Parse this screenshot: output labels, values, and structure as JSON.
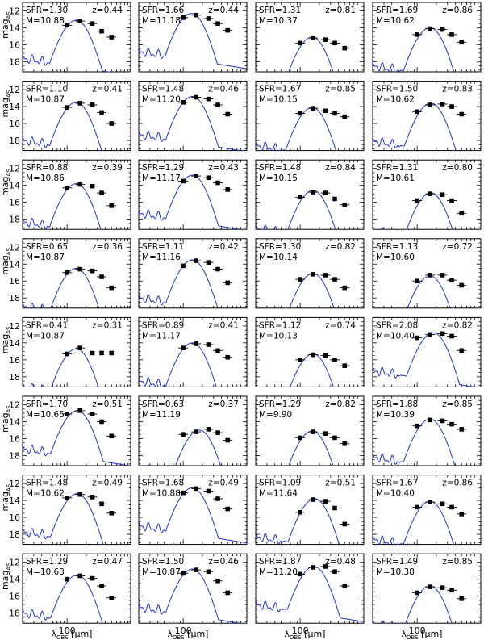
{
  "figure": {
    "ylabel_main": "mag",
    "ylabel_sub": "AS",
    "xlabel_main": "λ",
    "xlabel_sub": "OBS",
    "xlabel_unit": " [μm]",
    "y_ticks": [
      "12",
      "14",
      "16",
      "18"
    ],
    "x_tick": "100",
    "colors": {
      "model": "#2233cc",
      "data": "#000000",
      "axes": "#000000"
    }
  },
  "chart_data": {
    "type": "scatter",
    "layout": "8 rows x 4 columns of spectral energy distribution panels",
    "x_scale": "log",
    "x_unit": "μm",
    "xlim": [
      20,
      1000
    ],
    "ylim": [
      19.2,
      11.0
    ],
    "y_inverted": true,
    "band_wavelengths_um": [
      100,
      160,
      250,
      350,
      500
    ],
    "panels": [
      {
        "sfr": "SFR=1.30",
        "z": "z=0.44",
        "mass": "M=10.88",
        "peak_wl": 140,
        "peak_mag": 13.1,
        "points": [
          13.7,
          13.2,
          13.5,
          14.4,
          15.1
        ]
      },
      {
        "sfr": "SFR=1.66",
        "z": "z=0.44",
        "mass": "M=11.18",
        "peak_wl": 135,
        "peak_mag": 12.3,
        "points": [
          12.8,
          12.5,
          12.9,
          13.5,
          14.3
        ]
      },
      {
        "sfr": "SFR=1.31",
        "z": "z=0.81",
        "mass": "M=10.37",
        "peak_wl": 155,
        "peak_mag": 15.1,
        "points": [
          15.8,
          15.2,
          15.4,
          15.8,
          16.4
        ]
      },
      {
        "sfr": "SFR=1.69",
        "z": "z=0.86",
        "mass": "M=10.62",
        "peak_wl": 160,
        "peak_mag": 14.0,
        "points": [
          14.8,
          14.1,
          14.2,
          14.8,
          15.7
        ]
      },
      {
        "sfr": "SFR=1.10",
        "z": "z=0.41",
        "mass": "M=10.87",
        "peak_wl": 140,
        "peak_mag": 13.5,
        "points": [
          14.1,
          13.6,
          13.8,
          14.7,
          16.0
        ]
      },
      {
        "sfr": "SFR=1.48",
        "z": "z=0.46",
        "mass": "M=11.20",
        "peak_wl": 140,
        "peak_mag": 12.8,
        "points": [
          13.5,
          12.9,
          13.1,
          13.8,
          14.9
        ]
      },
      {
        "sfr": "SFR=1.67",
        "z": "z=0.85",
        "mass": "M=10.15",
        "peak_wl": 155,
        "peak_mag": 14.1,
        "points": [
          14.8,
          14.2,
          14.5,
          14.8,
          15.2
        ]
      },
      {
        "sfr": "SFR=1.50",
        "z": "z=0.83",
        "mass": "M=10.62",
        "peak_wl": 165,
        "peak_mag": 13.6,
        "points": [
          14.6,
          13.8,
          13.7,
          14.0,
          14.9
        ]
      },
      {
        "sfr": "SFR=0.88",
        "z": "z=0.39",
        "mass": "M=10.86",
        "peak_wl": 140,
        "peak_mag": 13.8,
        "points": [
          14.3,
          13.9,
          14.1,
          14.9,
          16.4
        ]
      },
      {
        "sfr": "SFR=1.29",
        "z": "z=0.43",
        "mass": "M=11.17",
        "peak_wl": 140,
        "peak_mag": 12.8,
        "points": [
          13.5,
          12.9,
          13.1,
          13.7,
          14.5
        ]
      },
      {
        "sfr": "SFR=1.48",
        "z": "z=0.84",
        "mass": "M=10.15",
        "peak_wl": 160,
        "peak_mag": 14.6,
        "points": [
          15.4,
          14.8,
          14.9,
          15.6,
          16.3
        ]
      },
      {
        "sfr": "SFR=1.31",
        "z": "z=0.80",
        "mass": "M=10.61",
        "peak_wl": 165,
        "peak_mag": 14.9,
        "points": [
          15.8,
          15.0,
          15.1,
          15.8,
          17.3
        ]
      },
      {
        "sfr": "SFR=0.65",
        "z": "z=0.36",
        "mass": "M=10.87",
        "peak_wl": 140,
        "peak_mag": 14.5,
        "points": [
          15.0,
          14.6,
          14.8,
          15.5,
          16.8
        ]
      },
      {
        "sfr": "SFR=1.11",
        "z": "z=0.42",
        "mass": "M=11.16",
        "peak_wl": 140,
        "peak_mag": 13.5,
        "points": [
          14.2,
          13.6,
          13.8,
          14.6,
          16.2
        ]
      },
      {
        "sfr": "SFR=1.30",
        "z": "z=0.82",
        "mass": "M=10.14",
        "peak_wl": 160,
        "peak_mag": 15.1,
        "points": [
          15.8,
          15.2,
          15.3,
          15.8,
          16.8
        ]
      },
      {
        "sfr": "SFR=1.13",
        "z": "z=0.72",
        "mass": "M=10.60",
        "peak_wl": 160,
        "peak_mag": 15.4,
        "points": [
          16.0,
          15.3,
          15.3,
          15.9,
          16.5
        ]
      },
      {
        "sfr": "SFR=0.41",
        "z": "z=0.31",
        "mass": "M=10.87",
        "peak_wl": 140,
        "peak_mag": 14.7,
        "points": [
          15.3,
          14.6,
          15.2,
          15.2,
          15.2
        ]
      },
      {
        "sfr": "SFR=0.89",
        "z": "z=0.41",
        "mass": "M=11.17",
        "peak_wl": 140,
        "peak_mag": 14.0,
        "points": [
          14.6,
          14.1,
          14.2,
          14.9,
          15.7
        ]
      },
      {
        "sfr": "SFR=1.12",
        "z": "z=0.74",
        "mass": "M=10.13",
        "peak_wl": 160,
        "peak_mag": 15.3,
        "points": [
          16.0,
          15.4,
          15.5,
          16.0,
          16.7
        ]
      },
      {
        "sfr": "SFR=2.08",
        "z": "z=0.82",
        "mass": "M=10.40",
        "peak_wl": 180,
        "peak_mag": 12.8,
        "points": [
          13.4,
          13.0,
          12.9,
          13.2,
          14.9
        ]
      },
      {
        "sfr": "SFR=1.70",
        "z": "z=0.51",
        "mass": "M=10.65",
        "peak_wl": 145,
        "peak_mag": 12.7,
        "points": [
          13.1,
          12.7,
          13.1,
          14.0,
          15.7
        ]
      },
      {
        "sfr": "SFR=0.63",
        "z": "z=0.37",
        "mass": "M=11.19",
        "peak_wl": 180,
        "peak_mag": 15.0,
        "points": [
          15.5,
          15.2,
          14.9,
          15.3,
          16.2
        ]
      },
      {
        "sfr": "SFR=1.29",
        "z": "z=0.82",
        "mass": "M=9.90",
        "peak_wl": 155,
        "peak_mag": 15.1,
        "points": [
          15.9,
          15.2,
          15.4,
          15.9,
          16.6
        ]
      },
      {
        "sfr": "SFR=1.88",
        "z": "z=0.85",
        "mass": "M=10.39",
        "peak_wl": 160,
        "peak_mag": 13.7,
        "points": [
          14.5,
          13.8,
          13.9,
          14.3,
          14.9
        ]
      },
      {
        "sfr": "SFR=1.48",
        "z": "z=0.49",
        "mass": "M=10.62",
        "peak_wl": 145,
        "peak_mag": 13.2,
        "points": [
          13.7,
          13.3,
          13.6,
          14.4,
          15.5
        ]
      },
      {
        "sfr": "SFR=1.68",
        "z": "z=0.49",
        "mass": "M=10.88",
        "peak_wl": 140,
        "peak_mag": 12.5,
        "points": [
          13.1,
          12.6,
          12.9,
          13.8,
          15.0
        ]
      },
      {
        "sfr": "SFR=1.09",
        "z": "z=0.51",
        "mass": "M=11.64",
        "peak_wl": 170,
        "peak_mag": 13.8,
        "points": [
          15.4,
          13.9,
          14.1,
          14.9,
          16.8
        ]
      },
      {
        "sfr": "SFR=1.67",
        "z": "z=0.86",
        "mass": "M=10.40",
        "peak_wl": 160,
        "peak_mag": 14.1,
        "points": [
          14.8,
          14.2,
          14.4,
          14.8,
          15.6
        ]
      },
      {
        "sfr": "SFR=1.29",
        "z": "z=0.47",
        "mass": "M=10.63",
        "peak_wl": 145,
        "peak_mag": 13.5,
        "points": [
          14.0,
          13.6,
          13.9,
          14.8,
          16.2
        ]
      },
      {
        "sfr": "SFR=1.50",
        "z": "z=0.46",
        "mass": "M=10.87",
        "peak_wl": 140,
        "peak_mag": 12.8,
        "points": [
          13.3,
          12.9,
          13.1,
          14.2,
          15.6
        ]
      },
      {
        "sfr": "SFR=1.87",
        "z": "z=0.48",
        "mass": "M=11.20",
        "peak_wl": 165,
        "peak_mag": 12.5,
        "points": [
          13.4,
          12.6,
          12.5,
          13.1,
          14.8
        ]
      },
      {
        "sfr": "SFR=1.49",
        "z": "z=0.85",
        "mass": "M=10.38",
        "peak_wl": 160,
        "peak_mag": 14.8,
        "points": [
          15.6,
          14.9,
          15.0,
          15.3,
          16.3
        ]
      }
    ]
  }
}
